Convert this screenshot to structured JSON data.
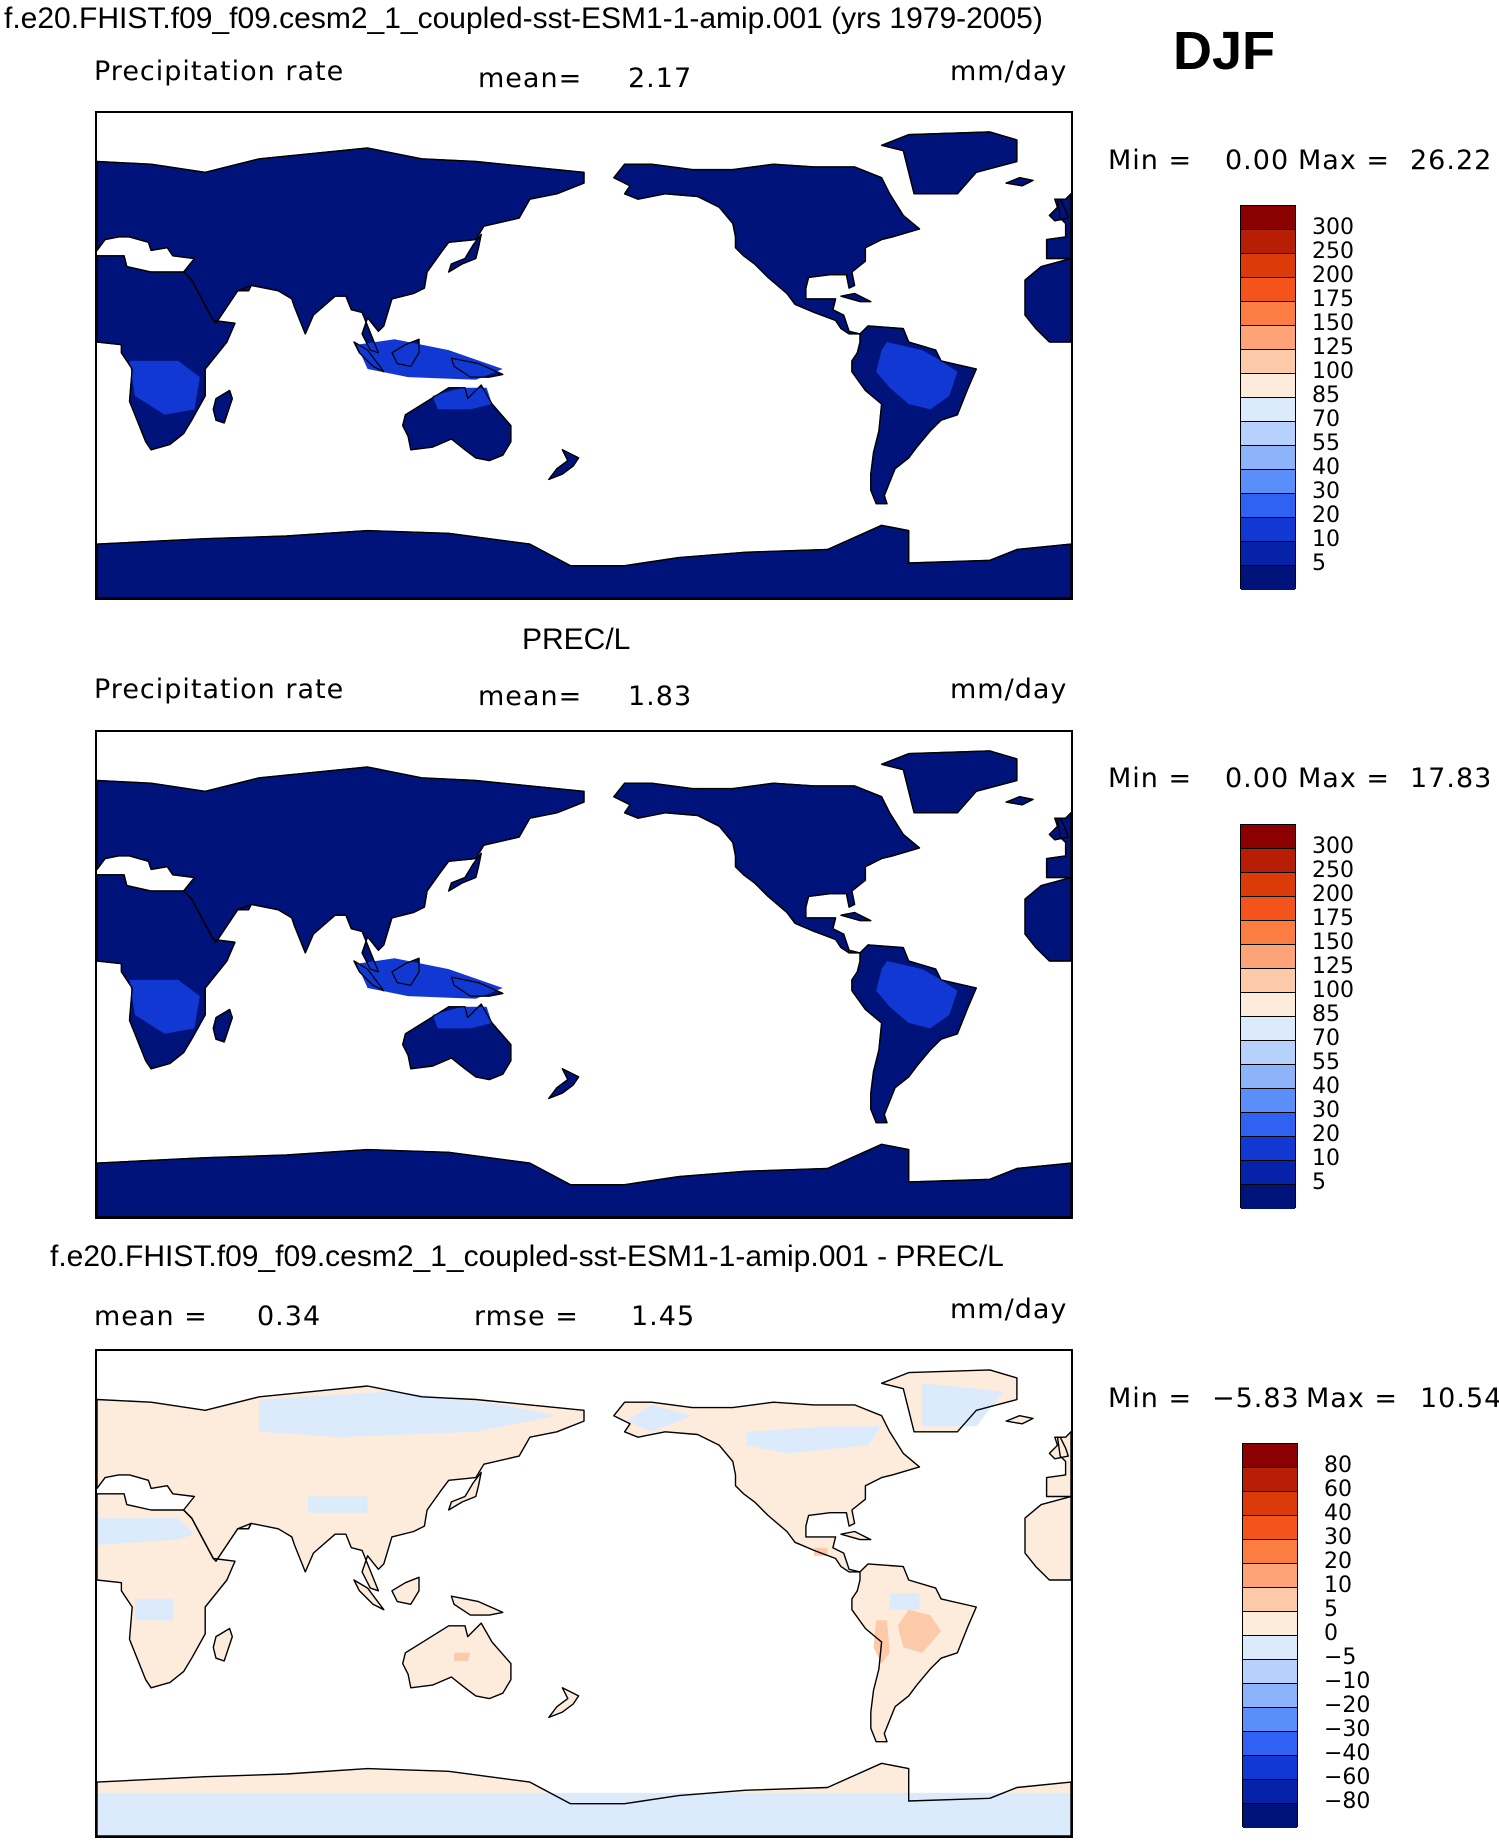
{
  "header": {
    "title": "f.e20.FHIST.f09_f09.cesm2_1_coupled-sst-ESM1-1-amip.001 (yrs 1979-2005)",
    "season": "DJF"
  },
  "chart_data": [
    {
      "type": "heatmap",
      "variable": "Precipitation rate",
      "units": "mm/day",
      "mean_label": "mean=",
      "mean": "2.17",
      "min_label": "Min =",
      "min": "0.00",
      "max_label": "Max =",
      "max": "26.22",
      "colorbar": {
        "levels": [
          "300",
          "250",
          "200",
          "175",
          "150",
          "125",
          "100",
          "85",
          "70",
          "55",
          "40",
          "30",
          "20",
          "10",
          "5"
        ],
        "colors": [
          "#8b0000",
          "#b81d05",
          "#dc3a08",
          "#f5531c",
          "#fb7d42",
          "#fca377",
          "#fcc9a9",
          "#fdebdc",
          "#dcebfb",
          "#b6d1fb",
          "#8db4fa",
          "#5a8ef8",
          "#2f62f2",
          "#1238d3",
          "#0522a8",
          "#00137b"
        ]
      }
    },
    {
      "type": "heatmap",
      "title": "PREC/L",
      "variable": "Precipitation rate",
      "units": "mm/day",
      "mean_label": "mean=",
      "mean": "1.83",
      "min_label": "Min =",
      "min": "0.00",
      "max_label": "Max =",
      "max": "17.83",
      "colorbar": {
        "levels": [
          "300",
          "250",
          "200",
          "175",
          "150",
          "125",
          "100",
          "85",
          "70",
          "55",
          "40",
          "30",
          "20",
          "10",
          "5"
        ],
        "colors": [
          "#8b0000",
          "#b81d05",
          "#dc3a08",
          "#f5531c",
          "#fb7d42",
          "#fca377",
          "#fcc9a9",
          "#fdebdc",
          "#dcebfb",
          "#b6d1fb",
          "#8db4fa",
          "#5a8ef8",
          "#2f62f2",
          "#1238d3",
          "#0522a8",
          "#00137b"
        ]
      }
    },
    {
      "type": "heatmap",
      "title": "f.e20.FHIST.f09_f09.cesm2_1_coupled-sst-ESM1-1-amip.001 - PREC/L",
      "mean_label": "mean =",
      "mean": "0.34",
      "rmse_label": "rmse =",
      "rmse": "1.45",
      "units": "mm/day",
      "min_label": "Min =",
      "min": "−5.83",
      "max_label": "Max =",
      "max": "10.54",
      "colorbar": {
        "levels": [
          "80",
          "60",
          "40",
          "30",
          "20",
          "10",
          "5",
          "0",
          "−5",
          "−10",
          "−20",
          "−30",
          "−40",
          "−60",
          "−80"
        ],
        "colors": [
          "#8b0000",
          "#b81d05",
          "#dc3a08",
          "#f5531c",
          "#fb7d42",
          "#fca377",
          "#fcc9a9",
          "#fdebdc",
          "#dcebfb",
          "#b6d1fb",
          "#8db4fa",
          "#5a8ef8",
          "#2f62f2",
          "#1238d3",
          "#0522a8",
          "#00137b"
        ]
      }
    }
  ]
}
